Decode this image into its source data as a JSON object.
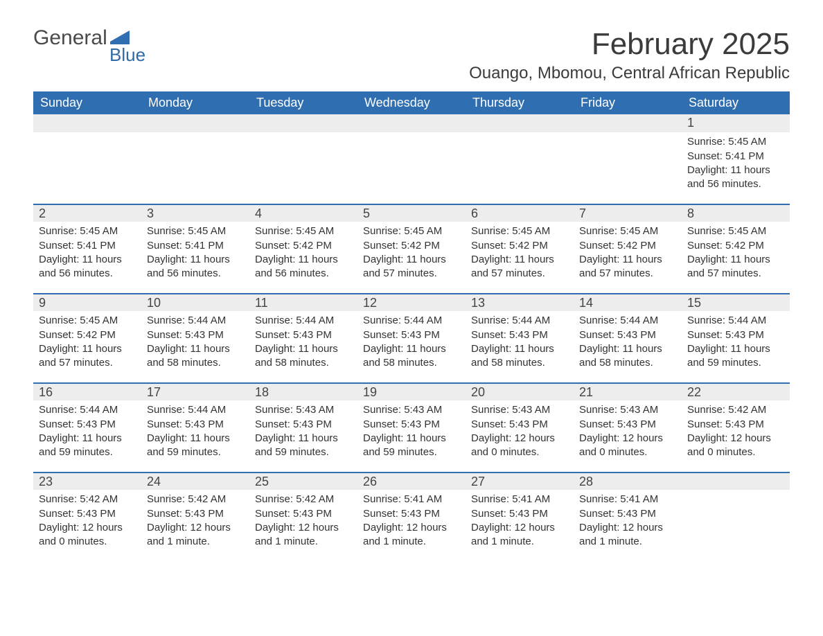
{
  "logo": {
    "main": "General",
    "sub": "Blue",
    "icon_color": "#2f6eb0"
  },
  "title": "February 2025",
  "location": "Ouango, Mbomou, Central African Republic",
  "colors": {
    "header_bg": "#2f6eb0",
    "header_text": "#ffffff",
    "band_bg": "#ededed",
    "band_border": "#2f6eb0",
    "body_text": "#333333",
    "title_text": "#3b3b3b"
  },
  "day_names": [
    "Sunday",
    "Monday",
    "Tuesday",
    "Wednesday",
    "Thursday",
    "Friday",
    "Saturday"
  ],
  "weeks": [
    [
      {
        "num": "",
        "sunrise": "",
        "sunset": "",
        "daylight": ""
      },
      {
        "num": "",
        "sunrise": "",
        "sunset": "",
        "daylight": ""
      },
      {
        "num": "",
        "sunrise": "",
        "sunset": "",
        "daylight": ""
      },
      {
        "num": "",
        "sunrise": "",
        "sunset": "",
        "daylight": ""
      },
      {
        "num": "",
        "sunrise": "",
        "sunset": "",
        "daylight": ""
      },
      {
        "num": "",
        "sunrise": "",
        "sunset": "",
        "daylight": ""
      },
      {
        "num": "1",
        "sunrise": "Sunrise: 5:45 AM",
        "sunset": "Sunset: 5:41 PM",
        "daylight": "Daylight: 11 hours and 56 minutes."
      }
    ],
    [
      {
        "num": "2",
        "sunrise": "Sunrise: 5:45 AM",
        "sunset": "Sunset: 5:41 PM",
        "daylight": "Daylight: 11 hours and 56 minutes."
      },
      {
        "num": "3",
        "sunrise": "Sunrise: 5:45 AM",
        "sunset": "Sunset: 5:41 PM",
        "daylight": "Daylight: 11 hours and 56 minutes."
      },
      {
        "num": "4",
        "sunrise": "Sunrise: 5:45 AM",
        "sunset": "Sunset: 5:42 PM",
        "daylight": "Daylight: 11 hours and 56 minutes."
      },
      {
        "num": "5",
        "sunrise": "Sunrise: 5:45 AM",
        "sunset": "Sunset: 5:42 PM",
        "daylight": "Daylight: 11 hours and 57 minutes."
      },
      {
        "num": "6",
        "sunrise": "Sunrise: 5:45 AM",
        "sunset": "Sunset: 5:42 PM",
        "daylight": "Daylight: 11 hours and 57 minutes."
      },
      {
        "num": "7",
        "sunrise": "Sunrise: 5:45 AM",
        "sunset": "Sunset: 5:42 PM",
        "daylight": "Daylight: 11 hours and 57 minutes."
      },
      {
        "num": "8",
        "sunrise": "Sunrise: 5:45 AM",
        "sunset": "Sunset: 5:42 PM",
        "daylight": "Daylight: 11 hours and 57 minutes."
      }
    ],
    [
      {
        "num": "9",
        "sunrise": "Sunrise: 5:45 AM",
        "sunset": "Sunset: 5:42 PM",
        "daylight": "Daylight: 11 hours and 57 minutes."
      },
      {
        "num": "10",
        "sunrise": "Sunrise: 5:44 AM",
        "sunset": "Sunset: 5:43 PM",
        "daylight": "Daylight: 11 hours and 58 minutes."
      },
      {
        "num": "11",
        "sunrise": "Sunrise: 5:44 AM",
        "sunset": "Sunset: 5:43 PM",
        "daylight": "Daylight: 11 hours and 58 minutes."
      },
      {
        "num": "12",
        "sunrise": "Sunrise: 5:44 AM",
        "sunset": "Sunset: 5:43 PM",
        "daylight": "Daylight: 11 hours and 58 minutes."
      },
      {
        "num": "13",
        "sunrise": "Sunrise: 5:44 AM",
        "sunset": "Sunset: 5:43 PM",
        "daylight": "Daylight: 11 hours and 58 minutes."
      },
      {
        "num": "14",
        "sunrise": "Sunrise: 5:44 AM",
        "sunset": "Sunset: 5:43 PM",
        "daylight": "Daylight: 11 hours and 58 minutes."
      },
      {
        "num": "15",
        "sunrise": "Sunrise: 5:44 AM",
        "sunset": "Sunset: 5:43 PM",
        "daylight": "Daylight: 11 hours and 59 minutes."
      }
    ],
    [
      {
        "num": "16",
        "sunrise": "Sunrise: 5:44 AM",
        "sunset": "Sunset: 5:43 PM",
        "daylight": "Daylight: 11 hours and 59 minutes."
      },
      {
        "num": "17",
        "sunrise": "Sunrise: 5:44 AM",
        "sunset": "Sunset: 5:43 PM",
        "daylight": "Daylight: 11 hours and 59 minutes."
      },
      {
        "num": "18",
        "sunrise": "Sunrise: 5:43 AM",
        "sunset": "Sunset: 5:43 PM",
        "daylight": "Daylight: 11 hours and 59 minutes."
      },
      {
        "num": "19",
        "sunrise": "Sunrise: 5:43 AM",
        "sunset": "Sunset: 5:43 PM",
        "daylight": "Daylight: 11 hours and 59 minutes."
      },
      {
        "num": "20",
        "sunrise": "Sunrise: 5:43 AM",
        "sunset": "Sunset: 5:43 PM",
        "daylight": "Daylight: 12 hours and 0 minutes."
      },
      {
        "num": "21",
        "sunrise": "Sunrise: 5:43 AM",
        "sunset": "Sunset: 5:43 PM",
        "daylight": "Daylight: 12 hours and 0 minutes."
      },
      {
        "num": "22",
        "sunrise": "Sunrise: 5:42 AM",
        "sunset": "Sunset: 5:43 PM",
        "daylight": "Daylight: 12 hours and 0 minutes."
      }
    ],
    [
      {
        "num": "23",
        "sunrise": "Sunrise: 5:42 AM",
        "sunset": "Sunset: 5:43 PM",
        "daylight": "Daylight: 12 hours and 0 minutes."
      },
      {
        "num": "24",
        "sunrise": "Sunrise: 5:42 AM",
        "sunset": "Sunset: 5:43 PM",
        "daylight": "Daylight: 12 hours and 1 minute."
      },
      {
        "num": "25",
        "sunrise": "Sunrise: 5:42 AM",
        "sunset": "Sunset: 5:43 PM",
        "daylight": "Daylight: 12 hours and 1 minute."
      },
      {
        "num": "26",
        "sunrise": "Sunrise: 5:41 AM",
        "sunset": "Sunset: 5:43 PM",
        "daylight": "Daylight: 12 hours and 1 minute."
      },
      {
        "num": "27",
        "sunrise": "Sunrise: 5:41 AM",
        "sunset": "Sunset: 5:43 PM",
        "daylight": "Daylight: 12 hours and 1 minute."
      },
      {
        "num": "28",
        "sunrise": "Sunrise: 5:41 AM",
        "sunset": "Sunset: 5:43 PM",
        "daylight": "Daylight: 12 hours and 1 minute."
      },
      {
        "num": "",
        "sunrise": "",
        "sunset": "",
        "daylight": ""
      }
    ]
  ]
}
